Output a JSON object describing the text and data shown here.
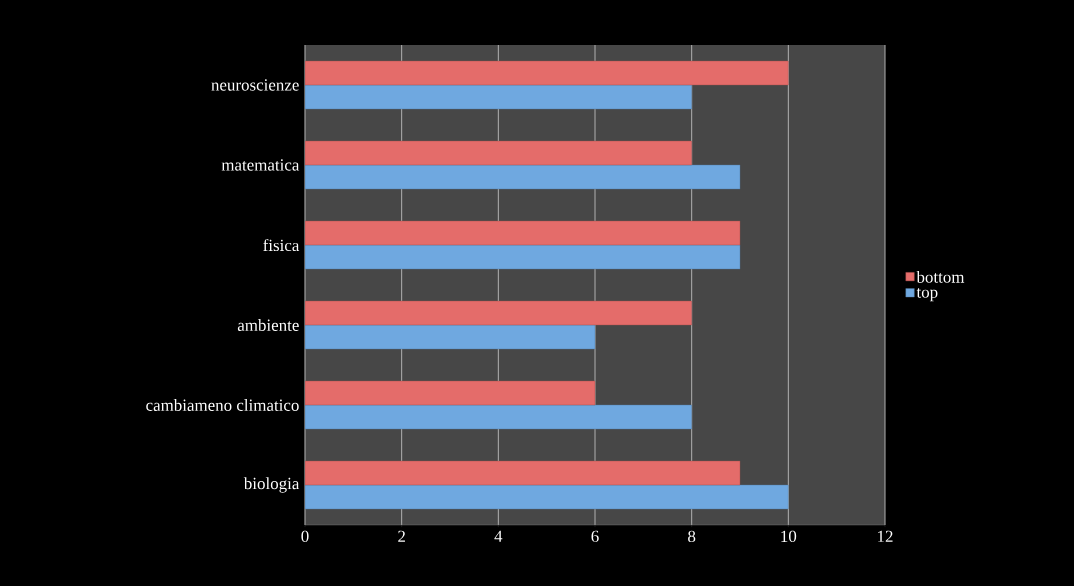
{
  "chart_data": {
    "type": "bar",
    "orientation": "horizontal",
    "categories": [
      "neuroscienze",
      "matematica",
      "fisica",
      "ambiente",
      "cambiameno climatico",
      "biologia"
    ],
    "series": [
      {
        "name": "top",
        "color": "#6fa8e0",
        "values": [
          8,
          9,
          9,
          6,
          8,
          10
        ]
      },
      {
        "name": "bottom",
        "color": "#e46c6a",
        "values": [
          10,
          8,
          9,
          8,
          6,
          9
        ]
      }
    ],
    "xlim": [
      0,
      12
    ],
    "xticks": [
      0,
      2,
      4,
      6,
      8,
      10,
      12
    ],
    "grid": "x",
    "legend": "right"
  }
}
